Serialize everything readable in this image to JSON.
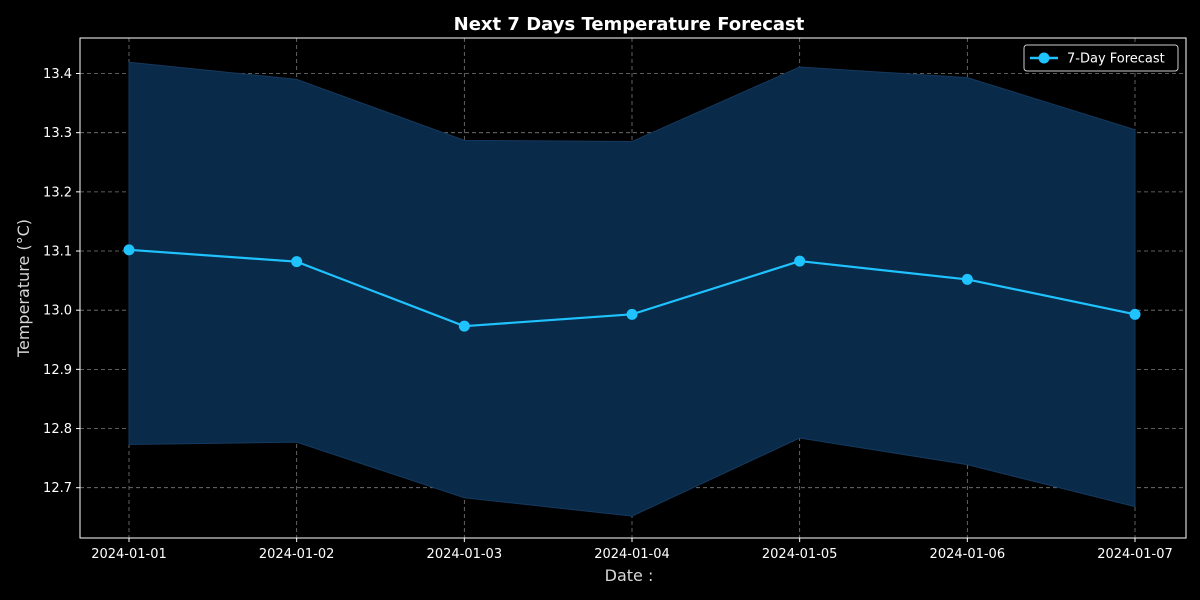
{
  "chart_data": {
    "type": "line",
    "title": "Next 7 Days Temperature Forecast",
    "xlabel": "Date :",
    "ylabel": "Temperature (°C)",
    "x": [
      "2024-01-01",
      "2024-01-02",
      "2024-01-03",
      "2024-01-04",
      "2024-01-05",
      "2024-01-06",
      "2024-01-07"
    ],
    "series": [
      {
        "name": "7-Day Forecast",
        "values": [
          13.102,
          13.082,
          12.973,
          12.993,
          13.083,
          13.052,
          12.993
        ],
        "lower": [
          12.773,
          12.777,
          12.683,
          12.652,
          12.784,
          12.739,
          12.668
        ],
        "upper": [
          13.419,
          13.39,
          13.287,
          13.285,
          13.411,
          13.393,
          13.305
        ],
        "color": "#1ec3ff",
        "band_color": "#0a2a4a"
      }
    ],
    "ylim": [
      12.615,
      13.46
    ],
    "yticks": [
      12.7,
      12.8,
      12.9,
      13.0,
      13.1,
      13.2,
      13.3,
      13.4
    ],
    "ytick_labels": [
      "12.7",
      "12.8",
      "12.9",
      "13.0",
      "13.1",
      "13.2",
      "13.3",
      "13.4"
    ],
    "grid": true,
    "legend_position": "top-right",
    "background": "#000000"
  }
}
